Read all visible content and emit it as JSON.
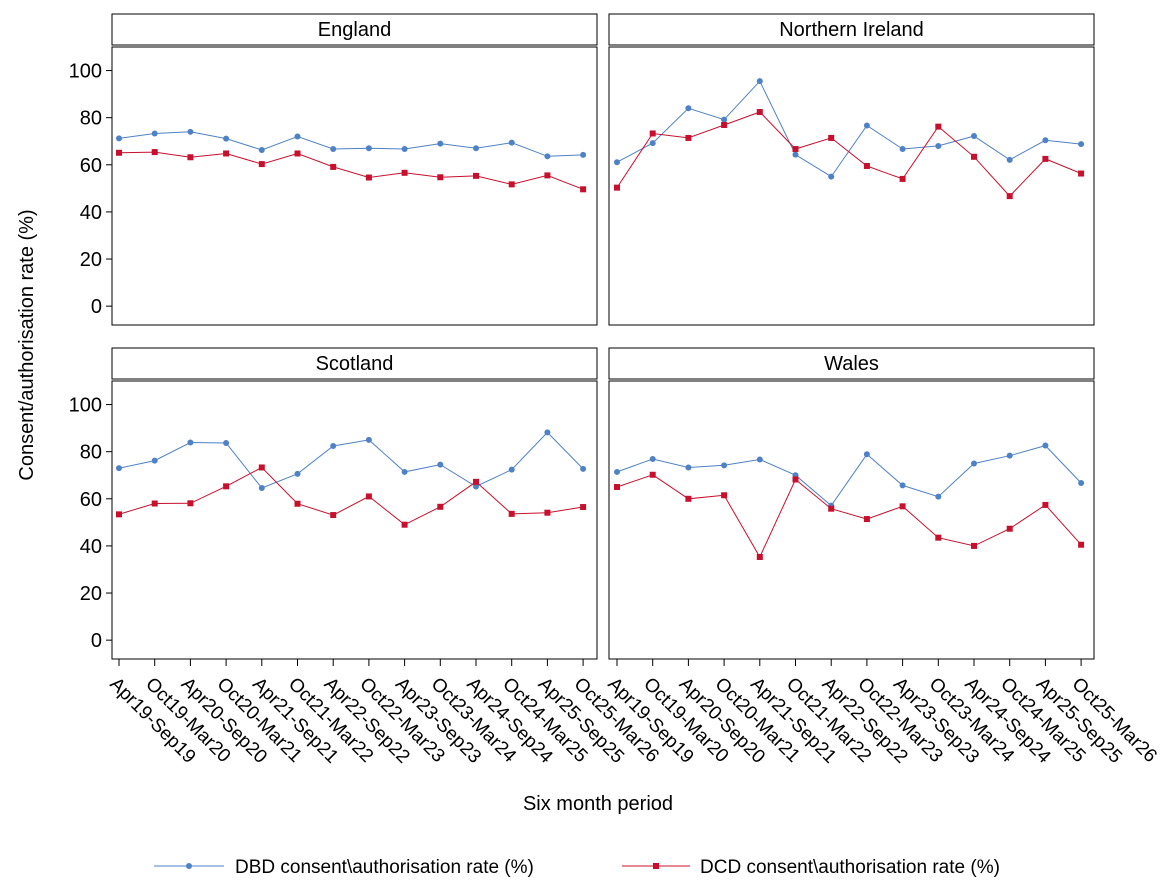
{
  "chart_data": {
    "type": "line",
    "ylabel": "Consent/authorisation rate (%)",
    "xlabel": "Six month period",
    "ylim": [
      -8,
      110
    ],
    "yticks": [
      0,
      20,
      40,
      60,
      80,
      100
    ],
    "grid": false,
    "legend_position": "bottom",
    "categories": [
      "Apr19-Sep19",
      "Oct19-Mar20",
      "Apr20-Sep20",
      "Oct20-Mar21",
      "Apr21-Sep21",
      "Oct21-Mar22",
      "Apr22-Sep22",
      "Oct22-Mar23",
      "Apr23-Sep23",
      "Oct23-Mar24",
      "Apr24-Sep24",
      "Oct24-Mar25",
      "Apr25-Sep25",
      "Oct25-Mar26"
    ],
    "series_meta": [
      {
        "name": "DBD consent\\authorisation rate (%)",
        "color": "#4f81c7",
        "marker": "circle"
      },
      {
        "name": "DCD consent\\authorisation rate (%)",
        "color": "#c8102e",
        "marker": "square"
      }
    ],
    "panels": [
      {
        "title": "England",
        "series": [
          {
            "name": "DBD consent\\authorisation rate (%)",
            "values": [
              71.2,
              73.3,
              74,
              71.1,
              66.3,
              72,
              66.7,
              67,
              66.7,
              69,
              67,
              69.4,
              63.6,
              64.2
            ]
          },
          {
            "name": "DCD consent\\authorisation rate (%)",
            "values": [
              65.1,
              65.4,
              63.2,
              64.8,
              60.3,
              64.8,
              59.1,
              54.6,
              56.6,
              54.7,
              55.3,
              51.7,
              55.5,
              49.6
            ]
          }
        ]
      },
      {
        "title": "Northern Ireland",
        "series": [
          {
            "name": "DBD consent\\authorisation rate (%)",
            "values": [
              61.1,
              69.2,
              84,
              79.2,
              95.5,
              64.3,
              55,
              76.7,
              66.7,
              68,
              72.2,
              62.1,
              70.4,
              68.8
            ]
          },
          {
            "name": "DCD consent\\authorisation rate (%)",
            "values": [
              50.3,
              73.3,
              71.4,
              76.9,
              82.4,
              66.7,
              71.4,
              59.5,
              54,
              76.2,
              63.4,
              46.7,
              62.5,
              56.3
            ]
          }
        ]
      },
      {
        "title": "Scotland",
        "series": [
          {
            "name": "DBD consent\\authorisation rate (%)",
            "values": [
              73,
              76.2,
              83.9,
              83.7,
              64.6,
              70.6,
              82.4,
              85,
              71.4,
              74.5,
              65.2,
              72.4,
              88.2,
              72.7
            ]
          },
          {
            "name": "DCD consent\\authorisation rate (%)",
            "values": [
              53.4,
              58,
              58.1,
              65.3,
              73.3,
              57.9,
              53.1,
              61,
              49,
              56.6,
              67.2,
              53.6,
              54.1,
              56.5
            ]
          }
        ]
      },
      {
        "title": "Wales",
        "series": [
          {
            "name": "DBD consent\\authorisation rate (%)",
            "values": [
              71.4,
              76.9,
              73.3,
              74.2,
              76.7,
              70,
              57.1,
              78.9,
              65.7,
              60.9,
              75,
              78.3,
              82.6,
              66.7
            ]
          },
          {
            "name": "DCD consent\\authorisation rate (%)",
            "values": [
              65,
              70.2,
              60,
              61.5,
              35.3,
              68.2,
              55.8,
              51.4,
              56.8,
              43.5,
              40,
              47.3,
              57.4,
              40.5
            ]
          }
        ]
      }
    ]
  }
}
